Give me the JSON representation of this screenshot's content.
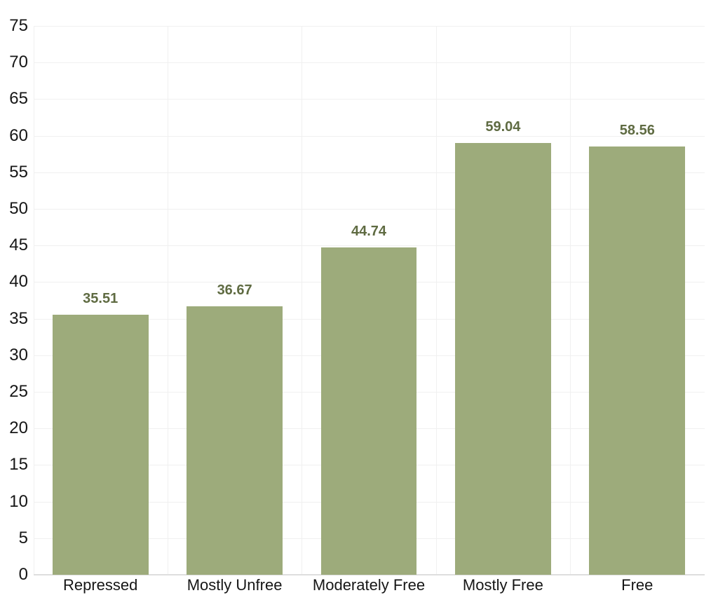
{
  "chart_data": {
    "type": "bar",
    "title": "",
    "xlabel": "",
    "ylabel": "",
    "categories": [
      "Repressed",
      "Mostly Unfree",
      "Moderately Free",
      "Mostly Free",
      "Free"
    ],
    "values": [
      35.51,
      36.67,
      44.74,
      59.04,
      58.56
    ],
    "value_labels": [
      "35.51",
      "36.67",
      "44.74",
      "59.04",
      "58.56"
    ],
    "ylim": [
      0,
      75
    ],
    "ytick_step": 5,
    "ytick_labels": [
      "0",
      "5",
      "10",
      "15",
      "20",
      "25",
      "30",
      "35",
      "40",
      "45",
      "50",
      "55",
      "60",
      "65",
      "70",
      "75"
    ],
    "grid": true,
    "legend": false,
    "colors": {
      "bar_fill": "#9dab7b",
      "value_label": "#5f6b42",
      "axis_label": "#161616",
      "gridline": "#f0f0f0",
      "baseline": "#dedede",
      "background": "#ffffff"
    }
  }
}
